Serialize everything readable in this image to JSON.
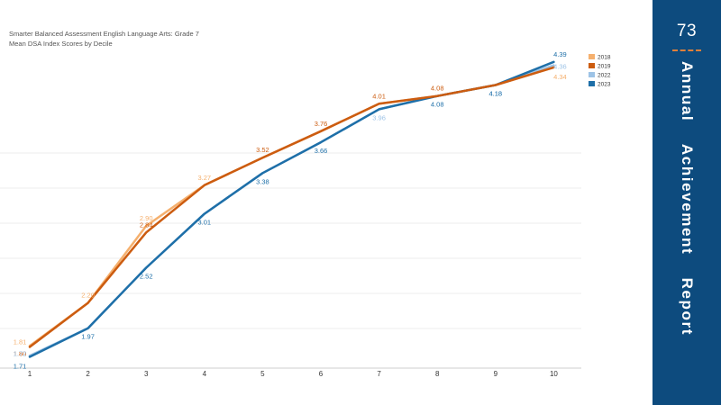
{
  "chart_data": {
    "type": "line",
    "title": "Smarter Balanced Assessment English Language Arts: Grade 7",
    "subtitle": "Mean DSA Index Scores by Decile",
    "categories": [
      "1",
      "2",
      "3",
      "4",
      "5",
      "6",
      "7",
      "8",
      "9",
      "10"
    ],
    "series": [
      {
        "name": "2018",
        "color": "#f5b06e",
        "values": [
          1.81,
          2.2,
          2.9,
          3.27,
          3.52,
          3.76,
          4.01,
          4.08,
          4.18,
          4.34
        ],
        "labels": [
          "1.81",
          "2.20",
          "2.90",
          "3.27",
          null,
          null,
          null,
          null,
          null,
          "4.34"
        ]
      },
      {
        "name": "2019",
        "color": "#cc5c10",
        "values": [
          1.8,
          2.2,
          2.84,
          3.27,
          3.52,
          3.76,
          4.01,
          4.08,
          4.18,
          4.34
        ],
        "labels": [
          "1.80",
          null,
          "2.84",
          null,
          "3.52",
          "3.76",
          "4.01",
          "4.08",
          null,
          null
        ]
      },
      {
        "name": "2022",
        "color": "#9dc3e6",
        "values": [
          1.72,
          1.97,
          2.52,
          3.01,
          3.38,
          3.66,
          3.96,
          4.08,
          4.18,
          4.36
        ],
        "labels": [
          "1.72",
          null,
          null,
          null,
          null,
          null,
          "3.96",
          null,
          "4.18",
          "4.36"
        ]
      },
      {
        "name": "2023",
        "color": "#1e6fa8",
        "values": [
          1.71,
          1.97,
          2.52,
          3.01,
          3.38,
          3.66,
          3.96,
          4.08,
          4.18,
          4.39
        ],
        "labels": [
          "1.71",
          "1.97",
          "2.52",
          "3.01",
          "3.38",
          "3.66",
          null,
          "4.08",
          "4.18",
          "4.39"
        ]
      }
    ],
    "legend_position": "top-right",
    "grid": "horizontal"
  },
  "side_panel": {
    "page_number": "73",
    "title": "Annual    Achievement    Report",
    "background": "#0d4b7e",
    "accent": "#e0803a"
  }
}
